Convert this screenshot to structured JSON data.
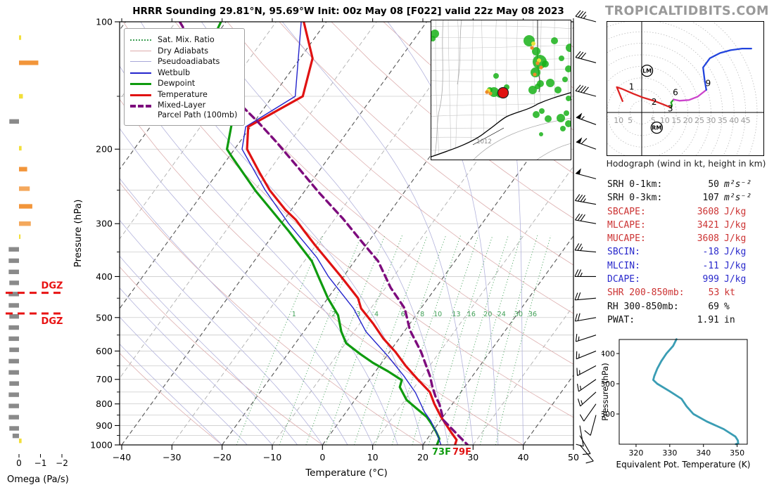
{
  "title": "HRRR Sounding 29.81°N, 95.69°W Init: 00z May 08 [F022] valid 22z May 08 2023",
  "branding": "TROPICALTIDBITS.COM",
  "legend": {
    "items": [
      {
        "style": "satmix",
        "lines": [
          "Sat. Mix. Ratio"
        ]
      },
      {
        "style": "drya",
        "lines": [
          "Dry Adiabats"
        ]
      },
      {
        "style": "pseudo",
        "lines": [
          "Pseudoadiabats"
        ]
      },
      {
        "style": "wetbulb",
        "lines": [
          "Wetbulb"
        ]
      },
      {
        "style": "dewpoint",
        "lines": [
          "Dewpoint"
        ]
      },
      {
        "style": "temperature",
        "lines": [
          "Temperature"
        ]
      },
      {
        "style": "parcel",
        "lines": [
          "Mixed-Layer",
          "Parcel Path (100mb)"
        ]
      }
    ]
  },
  "skewt": {
    "xlabel": "Temperature (°C)",
    "ylabel": "Pressure (hPa)",
    "pressure_ticks": [
      100,
      200,
      300,
      400,
      500,
      600,
      700,
      800,
      900,
      1000
    ],
    "temp_ticks": [
      -40,
      -30,
      -20,
      -10,
      0,
      10,
      20,
      30,
      40,
      50
    ],
    "surface_dewpoint_label": "73F",
    "surface_temp_label": "79F",
    "dgz_label": "DGZ",
    "omega_label": "Omega (Pa/s)",
    "omega_ticks": [
      "0",
      "−1",
      "−2"
    ]
  },
  "hodograph": {
    "caption": "Hodograph (wind in kt, height in km)",
    "left_ticks": [
      10,
      5
    ],
    "right_ticks": [
      5,
      10,
      15,
      20,
      25,
      30,
      35,
      40,
      45
    ],
    "lm_label": "LM",
    "rm_label": "RM"
  },
  "stats": {
    "rows": [
      {
        "label": "SRH 0-1km:",
        "value": "50",
        "unit": "m²s⁻²",
        "color": "k",
        "math": true
      },
      {
        "label": "SRH 0-3km:",
        "value": "107",
        "unit": "m²s⁻²",
        "color": "k",
        "math": true
      },
      {
        "label": "SBCAPE:",
        "value": "3608",
        "unit": "J/kg",
        "color": "r",
        "math": false
      },
      {
        "label": "MLCAPE:",
        "value": "3421",
        "unit": "J/kg",
        "color": "r",
        "math": false
      },
      {
        "label": "MUCAPE:",
        "value": "3608",
        "unit": "J/kg",
        "color": "r",
        "math": false
      },
      {
        "label": "SBCIN:",
        "value": "-18",
        "unit": "J/kg",
        "color": "b",
        "math": false
      },
      {
        "label": "MLCIN:",
        "value": "-11",
        "unit": "J/kg",
        "color": "b",
        "math": false
      },
      {
        "label": "DCAPE:",
        "value": "999",
        "unit": "J/kg",
        "color": "b",
        "math": false
      },
      {
        "label": "SHR 200-850mb:",
        "value": "53",
        "unit": "kt",
        "color": "r",
        "math": false
      },
      {
        "label": "RH 300-850mb:",
        "value": "69",
        "unit": "%",
        "color": "k",
        "math": false
      },
      {
        "label": "PWAT:",
        "value": "1.91",
        "unit": "in",
        "color": "k",
        "math": false
      }
    ]
  },
  "thetae": {
    "xlabel": "Equivalent Pot. Temperature (K)",
    "ylabel": "Pressure (hPa)",
    "xticks": [
      320,
      330,
      340,
      350
    ],
    "yticks": [
      400,
      600,
      800
    ]
  },
  "map": {
    "isobar_label": "1012",
    "station_dot": [
      103,
      104
    ],
    "radar_green": [
      [
        6,
        20,
        6
      ],
      [
        3,
        27,
        4
      ],
      [
        140,
        30,
        8
      ],
      [
        150,
        45,
        6
      ],
      [
        155,
        60,
        10
      ],
      [
        149,
        75,
        7
      ],
      [
        163,
        63,
        5
      ],
      [
        176,
        30,
        5
      ],
      [
        186,
        55,
        4
      ],
      [
        170,
        90,
        6
      ],
      [
        181,
        100,
        5
      ],
      [
        191,
        85,
        4
      ],
      [
        156,
        91,
        5
      ],
      [
        198,
        40,
        6
      ],
      [
        196,
        70,
        5
      ],
      [
        93,
        80,
        4
      ],
      [
        90,
        103,
        7
      ],
      [
        98,
        106,
        5
      ],
      [
        108,
        96,
        4
      ],
      [
        84,
        100,
        4
      ],
      [
        145,
        100,
        6
      ],
      [
        152,
        95,
        4
      ],
      [
        150,
        135,
        5
      ],
      [
        158,
        130,
        4
      ],
      [
        167,
        141,
        5
      ],
      [
        185,
        140,
        6
      ],
      [
        193,
        133,
        4
      ],
      [
        196,
        148,
        5
      ],
      [
        188,
        155,
        4
      ],
      [
        157,
        163,
        3
      ],
      [
        196,
        112,
        4
      ]
    ],
    "radar_orange": [
      [
        80,
        103
      ],
      [
        85,
        105
      ],
      [
        144,
        40
      ],
      [
        152,
        62
      ],
      [
        157,
        68
      ],
      [
        148,
        78
      ]
    ],
    "radar_yellow": [
      [
        146,
        34
      ],
      [
        154,
        58
      ],
      [
        82,
        101
      ]
    ]
  },
  "chart_data": [
    {
      "type": "skewt-logp",
      "title": "HRRR Sounding 29.81°N, 95.69°W Init: 00z May 08 [F022] valid 22z May 08 2023",
      "pressure_range": [
        100,
        1000
      ],
      "temp_range": [
        -40,
        50
      ],
      "isotherm_step_c": 10,
      "dry_adiabat_step_c": 20,
      "pseudoadiabat_step_c": 5,
      "mixing_ratio_gkg": [
        1,
        2,
        3,
        4,
        6,
        8,
        10,
        13,
        16,
        20,
        24,
        30,
        36
      ],
      "series": {
        "temperature": [
          [
            100,
            -64.5
          ],
          [
            122,
            -57.5
          ],
          [
            150,
            -54
          ],
          [
            177,
            -60.5
          ],
          [
            200,
            -57.5
          ],
          [
            227,
            -51.7
          ],
          [
            250,
            -47.1
          ],
          [
            278,
            -41.2
          ],
          [
            294,
            -37.6
          ],
          [
            312,
            -34.4
          ],
          [
            337,
            -30.2
          ],
          [
            361,
            -26.3
          ],
          [
            400,
            -20.5
          ],
          [
            450,
            -14
          ],
          [
            476,
            -11.9
          ],
          [
            517,
            -7.3
          ],
          [
            560,
            -3.2
          ],
          [
            603,
            1.2
          ],
          [
            650,
            5.2
          ],
          [
            697,
            9.3
          ],
          [
            750,
            13.8
          ],
          [
            800,
            16.4
          ],
          [
            855,
            19.4
          ],
          [
            890,
            21.4
          ],
          [
            937,
            24.0
          ],
          [
            973,
            26.0
          ],
          [
            1000,
            26.4
          ]
        ],
        "dewpoint": [
          [
            100,
            -81
          ],
          [
            124,
            -79
          ],
          [
            150,
            -69.5
          ],
          [
            176,
            -64
          ],
          [
            200,
            -61.5
          ],
          [
            209,
            -59.3
          ],
          [
            251,
            -49.8
          ],
          [
            312,
            -37.5
          ],
          [
            368,
            -28.5
          ],
          [
            400,
            -25
          ],
          [
            450,
            -20
          ],
          [
            494,
            -15.5
          ],
          [
            540,
            -12.5
          ],
          [
            575,
            -9.9
          ],
          [
            610,
            -5.5
          ],
          [
            640,
            -1.7
          ],
          [
            670,
            2.5
          ],
          [
            703,
            6.5
          ],
          [
            730,
            7.1
          ],
          [
            783,
            10.3
          ],
          [
            820,
            13.5
          ],
          [
            858,
            16.7
          ],
          [
            890,
            18.6
          ],
          [
            930,
            20.7
          ],
          [
            967,
            22.4
          ],
          [
            1000,
            22.8
          ]
        ],
        "wetbulb": [
          [
            100,
            -65
          ],
          [
            150,
            -55.5
          ],
          [
            177,
            -61
          ],
          [
            200,
            -58.5
          ],
          [
            250,
            -48
          ],
          [
            300,
            -38.5
          ],
          [
            361,
            -28
          ],
          [
            400,
            -23
          ],
          [
            450,
            -16.5
          ],
          [
            476,
            -13.4
          ],
          [
            540,
            -7.6
          ],
          [
            617,
            0.3
          ],
          [
            687,
            6.3
          ],
          [
            752,
            11
          ],
          [
            836,
            15.6
          ],
          [
            877,
            18.1
          ],
          [
            940,
            21.2
          ],
          [
            1000,
            23.6
          ]
        ],
        "parcel": [
          [
            100,
            -89.2
          ],
          [
            124,
            -78.9
          ],
          [
            150,
            -68.1
          ],
          [
            172,
            -59.4
          ],
          [
            192,
            -52.8
          ],
          [
            221,
            -44.7
          ],
          [
            253,
            -37
          ],
          [
            292,
            -28.4
          ],
          [
            333,
            -21
          ],
          [
            368,
            -15.3
          ],
          [
            425,
            -9
          ],
          [
            476,
            -3.2
          ],
          [
            535,
            0.9
          ],
          [
            603,
            6.3
          ],
          [
            687,
            11.5
          ],
          [
            730,
            13.6
          ],
          [
            769,
            15.6
          ],
          [
            800,
            17.4
          ],
          [
            875,
            20.6
          ],
          [
            1000,
            28.9
          ]
        ]
      },
      "wind_barbs_p_kt_dir": [
        [
          100,
          35,
          285
        ],
        [
          125,
          30,
          285
        ],
        [
          150,
          40,
          285
        ],
        [
          175,
          55,
          290
        ],
        [
          200,
          60,
          290
        ],
        [
          235,
          50,
          285
        ],
        [
          270,
          35,
          280
        ],
        [
          300,
          30,
          280
        ],
        [
          350,
          25,
          275
        ],
        [
          400,
          25,
          270
        ],
        [
          450,
          20,
          265
        ],
        [
          500,
          20,
          260
        ],
        [
          550,
          15,
          252
        ],
        [
          600,
          15,
          248
        ],
        [
          650,
          15,
          242
        ],
        [
          700,
          15,
          235
        ],
        [
          750,
          15,
          228
        ],
        [
          800,
          10,
          215
        ],
        [
          850,
          10,
          195
        ],
        [
          900,
          10,
          170
        ],
        [
          950,
          10,
          150
        ],
        [
          1000,
          8,
          140
        ]
      ],
      "omega_bars_p_pas": [
        [
          109,
          -0.1,
          "y"
        ],
        [
          125,
          -0.9,
          "o"
        ],
        [
          150,
          -0.18,
          "y"
        ],
        [
          172,
          0.45,
          "g"
        ],
        [
          199,
          -0.12,
          "y"
        ],
        [
          223,
          -0.38,
          "o"
        ],
        [
          248,
          -0.5,
          "o2"
        ],
        [
          273,
          -0.62,
          "o"
        ],
        [
          300,
          -0.55,
          "o2"
        ],
        [
          322,
          -0.07,
          "y"
        ],
        [
          345,
          0.48,
          "g"
        ],
        [
          367,
          0.48,
          "g"
        ],
        [
          390,
          0.48,
          "g"
        ],
        [
          414,
          0.45,
          "g"
        ],
        [
          440,
          0.48,
          "g"
        ],
        [
          468,
          0.48,
          "g"
        ],
        [
          497,
          0.45,
          "g"
        ],
        [
          528,
          0.48,
          "g"
        ],
        [
          561,
          0.48,
          "g"
        ],
        [
          596,
          0.45,
          "g"
        ],
        [
          634,
          0.48,
          "g"
        ],
        [
          674,
          0.48,
          "g"
        ],
        [
          716,
          0.45,
          "g"
        ],
        [
          761,
          0.48,
          "g"
        ],
        [
          809,
          0.48,
          "g"
        ],
        [
          860,
          0.48,
          "g"
        ],
        [
          914,
          0.45,
          "g"
        ],
        [
          952,
          0.3,
          "g"
        ],
        [
          978,
          -0.12,
          "y"
        ]
      ],
      "dgz_pressures_hpa": [
        437,
        489
      ]
    },
    {
      "type": "hodograph",
      "units": "kt",
      "rings_kt": [
        5,
        10,
        15,
        20,
        25,
        30,
        35,
        40,
        45,
        50
      ],
      "segments": [
        {
          "name": "0-3km",
          "color": "#dd2222",
          "points": [
            [
              -8.3,
              4.9
            ],
            [
              -10.8,
              11
            ],
            [
              -8.5,
              10.2
            ],
            [
              -3.6,
              8.1
            ],
            [
              0.5,
              6.5
            ],
            [
              5.7,
              4.9
            ],
            [
              9.5,
              3.4
            ],
            [
              12.7,
              2.1
            ]
          ]
        },
        {
          "name": "3-6km",
          "color": "#22aa22",
          "points": [
            [
              12.7,
              2.1
            ],
            [
              13.1,
              3.2
            ],
            [
              12.7,
              4.3
            ],
            [
              13.8,
              5.6
            ]
          ]
        },
        {
          "name": "6-9km",
          "color": "#cc44cc",
          "points": [
            [
              13.8,
              5.6
            ],
            [
              16.3,
              5.1
            ],
            [
              20.5,
              5.4
            ],
            [
              24.3,
              6.9
            ],
            [
              28,
              9.8
            ]
          ]
        },
        {
          "name": "9-12km",
          "color": "#2244dd",
          "points": [
            [
              28,
              9.8
            ],
            [
              27.2,
              14.5
            ],
            [
              26.6,
              19.5
            ],
            [
              29.5,
              23.5
            ],
            [
              34,
              25.8
            ],
            [
              38.5,
              27
            ],
            [
              43.5,
              27.7
            ],
            [
              47.5,
              27.7
            ]
          ]
        }
      ],
      "height_labels": [
        [
          "1",
          -4.4,
          9.9
        ],
        [
          "2",
          5.4,
          3.3
        ],
        [
          "3",
          12.4,
          0.5
        ],
        [
          "6",
          14.6,
          7.4
        ],
        [
          "9",
          28.8,
          11.5
        ]
      ],
      "storm_motion": {
        "LM": [
          2.3,
          18.1
        ],
        "RM": [
          6.5,
          -6.6
        ]
      }
    },
    {
      "type": "line",
      "name": "equivalent-potential-temperature",
      "xlabel": "Equivalent Pot. Temperature (K)",
      "ylabel": "Pressure (hPa)",
      "xlim": [
        315,
        353
      ],
      "plim": [
        307,
        1000
      ],
      "points_p_k": [
        [
          305,
          332
        ],
        [
          350,
          331
        ],
        [
          400,
          329
        ],
        [
          450,
          327.5
        ],
        [
          500,
          326.3
        ],
        [
          550,
          325.4
        ],
        [
          575,
          325.1
        ],
        [
          600,
          326.3
        ],
        [
          650,
          330
        ],
        [
          700,
          333.5
        ],
        [
          750,
          335
        ],
        [
          800,
          337
        ],
        [
          850,
          341
        ],
        [
          900,
          346
        ],
        [
          950,
          349.5
        ],
        [
          975,
          350.2
        ],
        [
          995,
          350.3
        ],
        [
          1000,
          349.6
        ]
      ]
    }
  ]
}
